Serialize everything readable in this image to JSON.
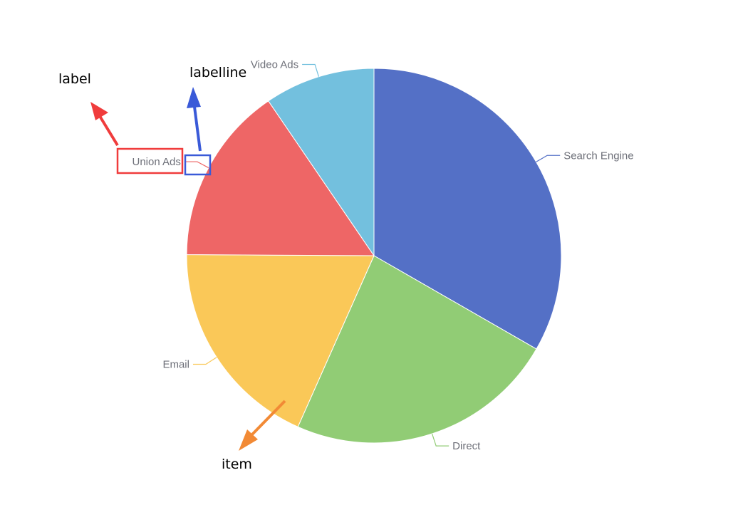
{
  "chart_data": {
    "type": "pie",
    "title": "",
    "legend": "none",
    "slices": [
      {
        "name": "Search Engine",
        "value": 1048,
        "color": "#5470c6"
      },
      {
        "name": "Direct",
        "value": 735,
        "color": "#91cc75"
      },
      {
        "name": "Email",
        "value": 580,
        "color": "#fac858"
      },
      {
        "name": "Union Ads",
        "value": 484,
        "color": "#ee6666"
      },
      {
        "name": "Video Ads",
        "value": 300,
        "color": "#73c0de"
      }
    ]
  },
  "annotations": {
    "label": {
      "text": "label",
      "color": "#f03c3c"
    },
    "labelline": {
      "text": "labelline",
      "color": "#3a5ad8"
    },
    "item": {
      "text": "item",
      "color": "#f28a35"
    }
  }
}
